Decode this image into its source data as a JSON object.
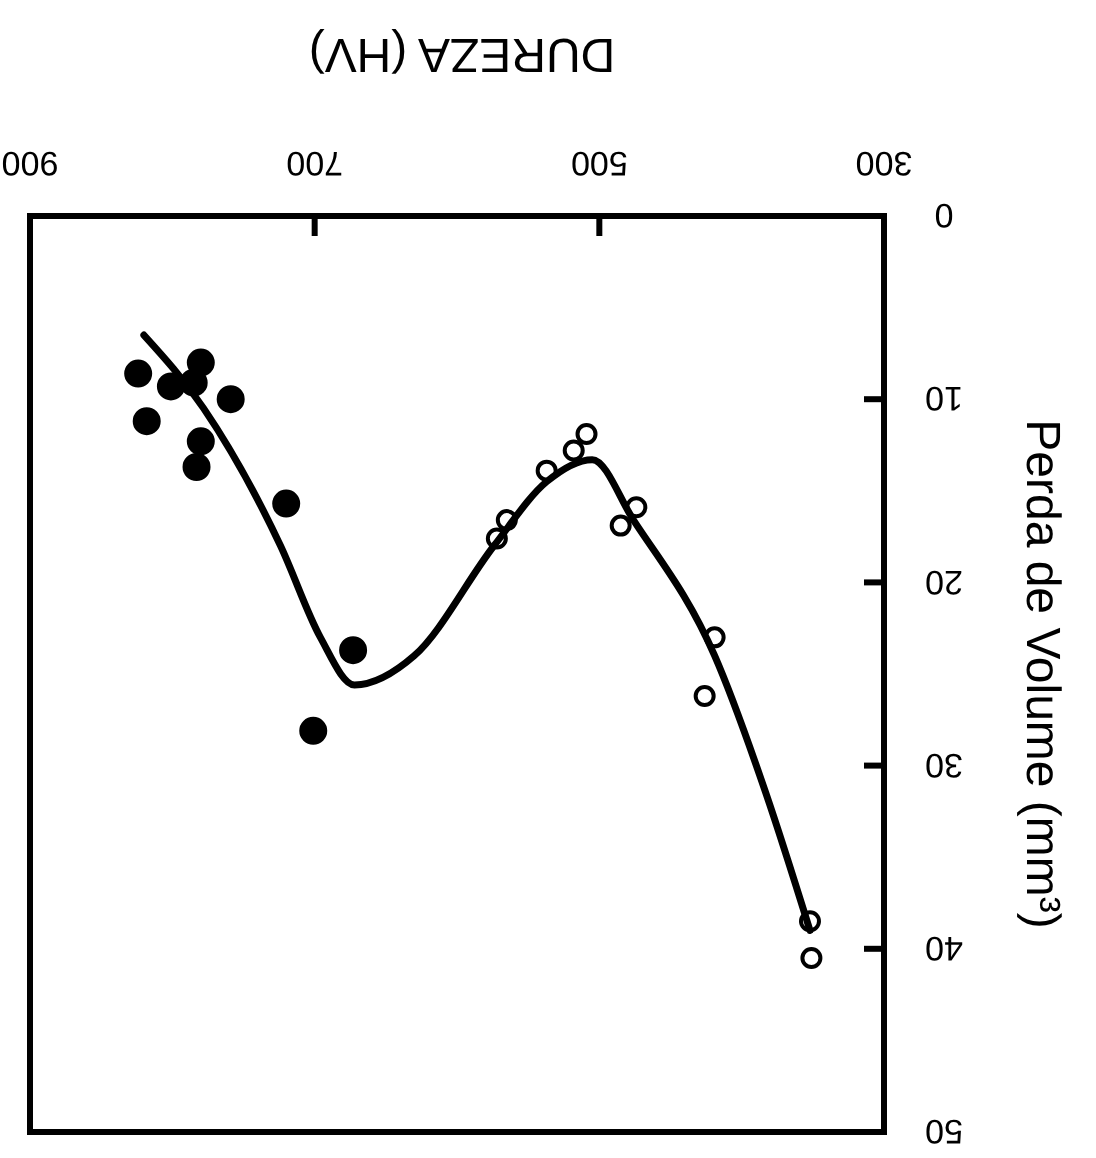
{
  "chart_data": {
    "type": "scatter",
    "xlabel": "DUREZA (HV)",
    "ylabel": "Perda de Volume (mm³)",
    "xlim": [
      900,
      300
    ],
    "xticks": [
      900,
      700,
      500,
      300
    ],
    "ylim": [
      50,
      0
    ],
    "yticks": [
      0,
      10,
      20,
      30,
      40,
      50
    ],
    "grid": false,
    "marker": "circle",
    "series": [
      {
        "color": "#000000",
        "x": [
          824,
          818,
          780,
          801,
          785,
          759,
          780,
          783,
          720,
          673,
          701
        ],
        "values": [
          8.6,
          11.2,
          8.0,
          9.3,
          9.1,
          10.0,
          12.3,
          13.7,
          15.7,
          23.7,
          28.1
        ]
      },
      {
        "color": "#000000",
        "x": [
          565,
          572,
          537,
          518,
          509,
          474,
          485,
          419,
          426,
          352,
          351
        ],
        "values": [
          16.6,
          17.6,
          13.9,
          12.8,
          11.9,
          15.9,
          16.9,
          23.0,
          26.2,
          38.5,
          40.5
        ]
      },
      {
        "type": "line",
        "color": "#000000",
        "line_style": "solid",
        "marker": "none",
        "x": [
          820,
          778,
          724,
          696,
          672,
          630,
          574,
          537,
          505,
          476,
          419,
          383,
          352
        ],
        "values": [
          6.5,
          10.5,
          18,
          23,
          25.6,
          24,
          18,
          14.5,
          13.3,
          16.6,
          24,
          31.5,
          39
        ]
      }
    ]
  }
}
